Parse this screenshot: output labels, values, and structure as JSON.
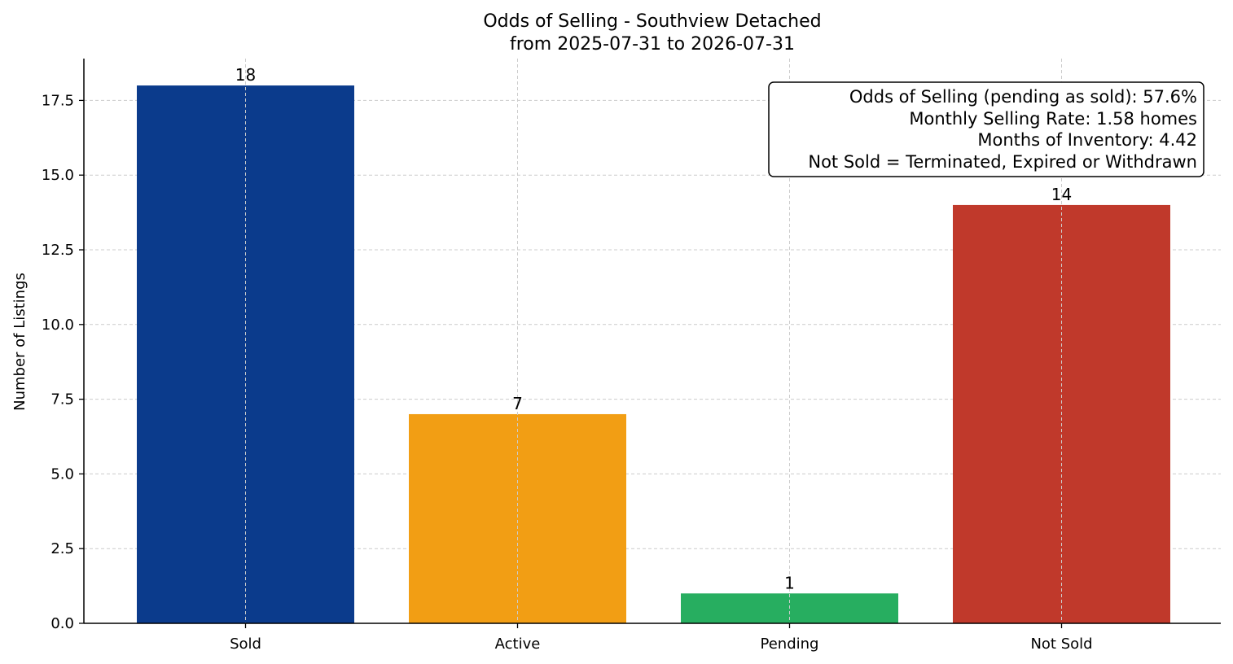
{
  "chart_data": {
    "type": "bar",
    "title": "Odds of Selling - Southview Detached",
    "subtitle": "from 2025-07-31 to 2026-07-31",
    "xlabel": "",
    "ylabel": "Number of Listings",
    "categories": [
      "Sold",
      "Active",
      "Pending",
      "Not Sold"
    ],
    "values": [
      18,
      7,
      1,
      14
    ],
    "data_labels": [
      "18",
      "7",
      "1",
      "14"
    ],
    "colors": [
      "#0b3b8c",
      "#f29e14",
      "#27ae60",
      "#c0392b"
    ],
    "ylim": [
      0,
      18.9
    ],
    "yticks": [
      0.0,
      2.5,
      5.0,
      7.5,
      10.0,
      12.5,
      15.0,
      17.5
    ],
    "ytick_labels": [
      "0.0",
      "2.5",
      "5.0",
      "7.5",
      "10.0",
      "12.5",
      "15.0",
      "17.5"
    ],
    "grid": true,
    "stats_box_placement": "top-right",
    "stats_box": [
      "Odds of Selling (pending as sold): 57.6%",
      "Monthly Selling Rate: 1.58 homes",
      "Months of Inventory: 4.42",
      "Not Sold = Terminated, Expired or Withdrawn"
    ]
  }
}
